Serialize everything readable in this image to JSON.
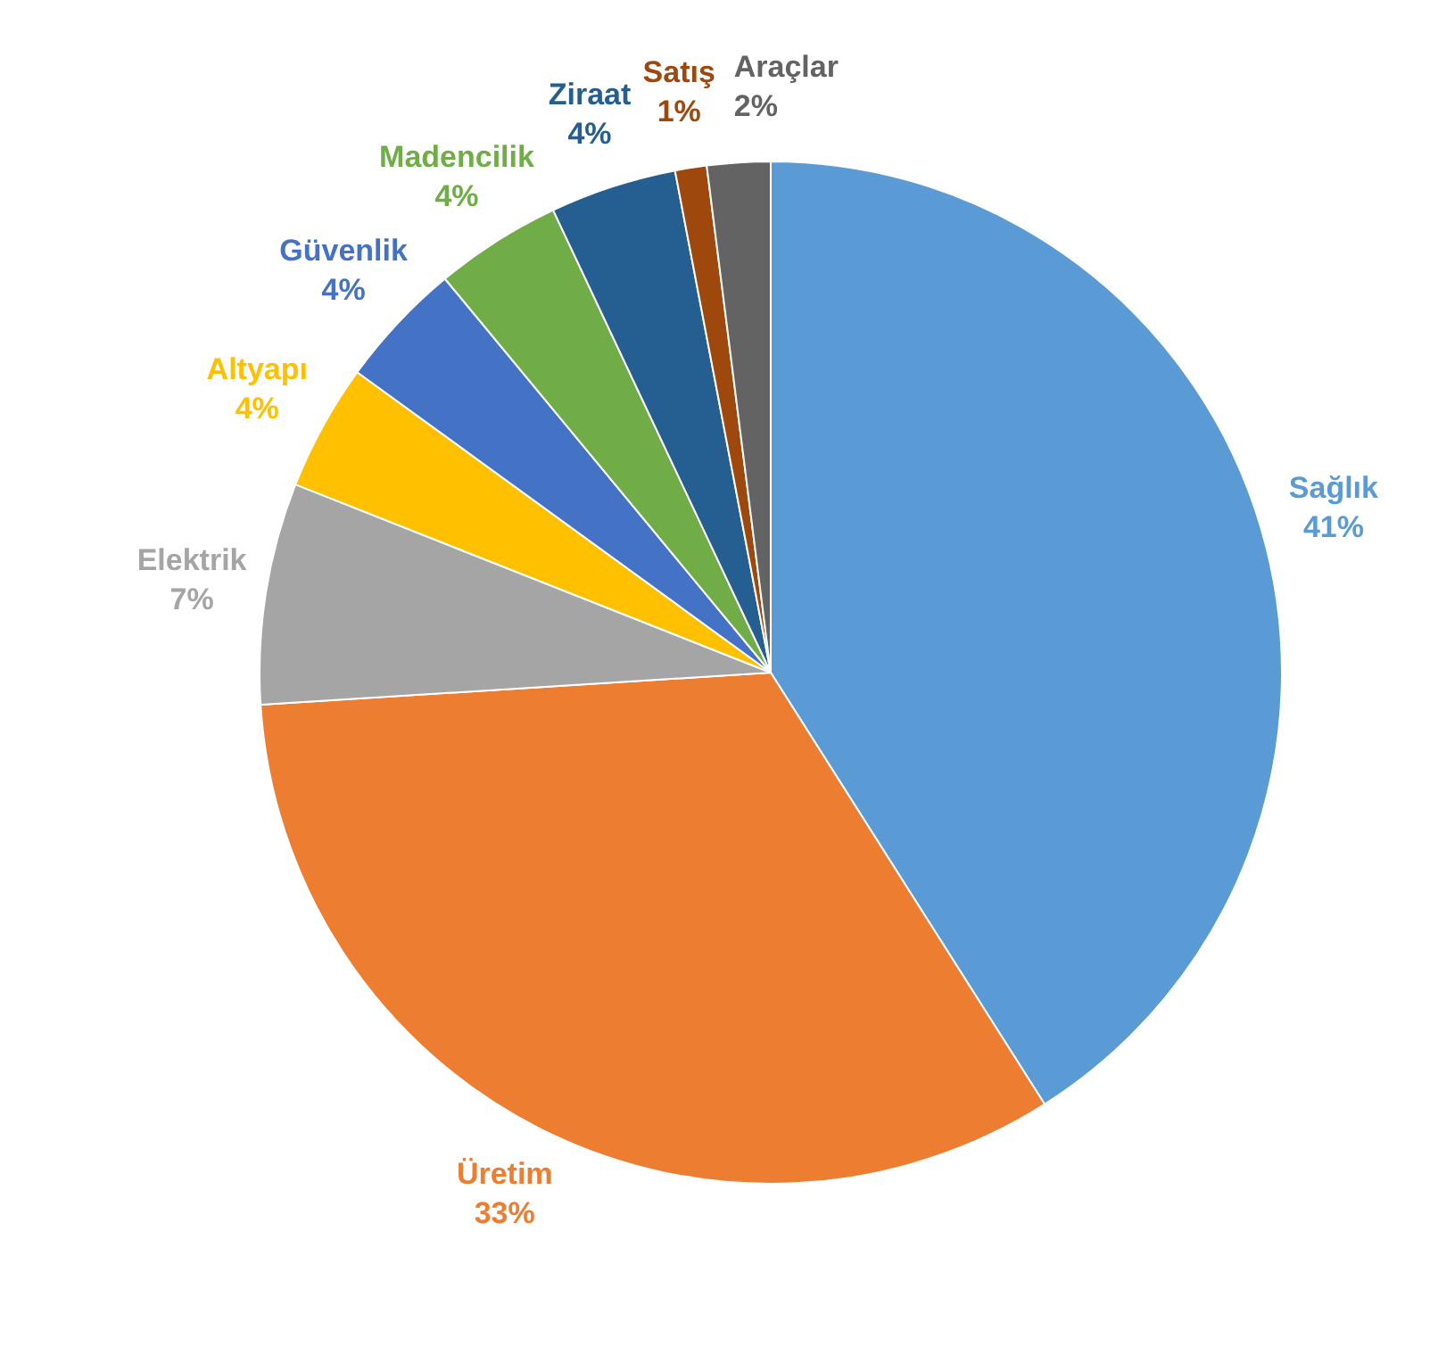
{
  "chart_data": {
    "type": "pie",
    "categories": [
      "Sağlık",
      "Üretim",
      "Elektrik",
      "Altyapı",
      "Güvenlik",
      "Madencilik",
      "Ziraat",
      "Satış",
      "Araçlar"
    ],
    "values": [
      41,
      33,
      7,
      4,
      4,
      4,
      4,
      1,
      2
    ],
    "value_labels": [
      "41%",
      "33%",
      "7%",
      "4%",
      "4%",
      "4%",
      "4%",
      "1%",
      "2%"
    ],
    "colors": [
      "#5b9bd5",
      "#ed7d31",
      "#a5a5a5",
      "#ffc000",
      "#4472c4",
      "#70ad47",
      "#255e91",
      "#9e480e",
      "#636363"
    ],
    "legend": false
  }
}
